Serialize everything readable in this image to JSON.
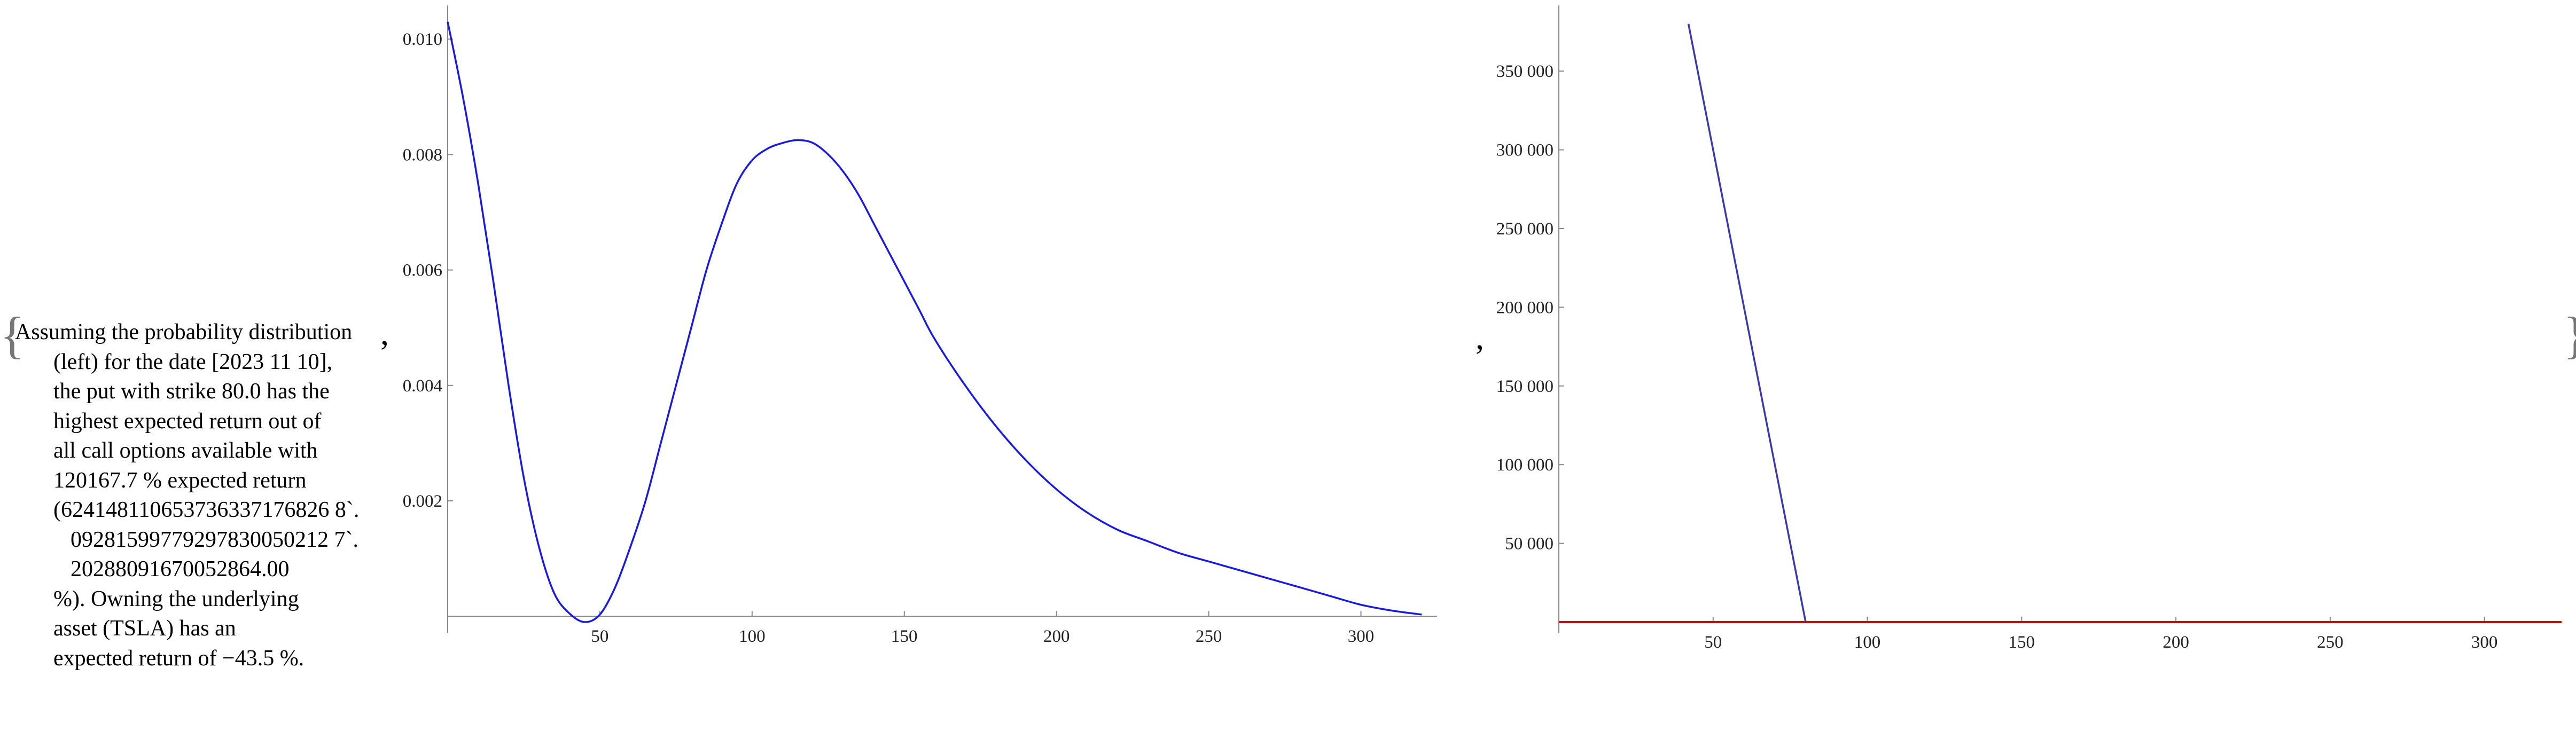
{
  "description": {
    "lines": [
      "Assuming the probability distribution",
      "(left) for the date [2023 11 10],",
      "the put with strike 80.0 has the",
      "highest expected return out of",
      "all call options available with",
      "120167.7 % expected return",
      "(624148110653736337176826 8`.",
      "09281599779297830050212 7`.",
      "20288091670052864.00",
      "%). Owning the underlying",
      "asset (TSLA) has an",
      "expected return of −43.5 %."
    ]
  },
  "punctuation": {
    "open": "{",
    "close": "}",
    "comma": ","
  },
  "colors": {
    "left_curve": "#1a1adc",
    "right_line": "#3a3aa8",
    "right_baseline": "#c01010",
    "axis": "#888888"
  },
  "chart_data": [
    {
      "type": "line",
      "title": "",
      "xlabel": "",
      "ylabel": "",
      "xlim": [
        0,
        325
      ],
      "ylim": [
        -0.0001,
        0.0104
      ],
      "x_ticks": [
        50,
        100,
        150,
        200,
        250,
        300
      ],
      "x_tick_labels": [
        "50",
        "100",
        "150",
        "200",
        "250",
        "300"
      ],
      "y_ticks": [
        0.002,
        0.004,
        0.006,
        0.008,
        0.01
      ],
      "y_tick_labels": [
        "0.002",
        "0.004",
        "0.006",
        "0.008",
        "0.010"
      ],
      "grid": false,
      "series": [
        {
          "x": [
            0,
            5,
            10,
            15,
            20,
            25,
            30,
            35,
            40,
            45,
            50,
            55,
            60,
            65,
            70,
            75,
            80,
            85,
            90,
            95,
            100,
            105,
            110,
            115,
            120,
            125,
            130,
            135,
            140,
            145,
            150,
            155,
            160,
            170,
            180,
            190,
            200,
            210,
            220,
            230,
            240,
            250,
            260,
            270,
            280,
            290,
            300,
            310,
            320
          ],
          "y": [
            0.0103,
            0.009,
            0.0075,
            0.0058,
            0.004,
            0.0024,
            0.0012,
            0.0004,
            5e-05,
            -0.0001,
            3e-05,
            0.0005,
            0.0012,
            0.002,
            0.003,
            0.004,
            0.005,
            0.006,
            0.0068,
            0.0075,
            0.0079,
            0.0081,
            0.0082,
            0.00825,
            0.0082,
            0.008,
            0.0077,
            0.0073,
            0.0068,
            0.0063,
            0.0058,
            0.0053,
            0.0048,
            0.004,
            0.0033,
            0.0027,
            0.0022,
            0.0018,
            0.0015,
            0.0013,
            0.0011,
            0.00095,
            0.0008,
            0.00065,
            0.0005,
            0.00035,
            0.0002,
            0.0001,
            3e-05
          ]
        }
      ]
    },
    {
      "type": "line",
      "title": "",
      "xlabel": "",
      "ylabel": "",
      "xlim": [
        0,
        325
      ],
      "ylim": [
        0,
        385000
      ],
      "x_ticks": [
        50,
        100,
        150,
        200,
        250,
        300
      ],
      "x_tick_labels": [
        "50",
        "100",
        "150",
        "200",
        "250",
        "300"
      ],
      "y_ticks": [
        50000,
        100000,
        150000,
        200000,
        250000,
        300000,
        350000
      ],
      "y_tick_labels": [
        "50 000",
        "100 000",
        "150 000",
        "200 000",
        "250 000",
        "300 000",
        "350 000"
      ],
      "grid": false,
      "series": [
        {
          "x": [
            42,
            80,
            325
          ],
          "y": [
            380000,
            0,
            0
          ]
        },
        {
          "x": [
            0,
            325
          ],
          "y": [
            0,
            0
          ]
        }
      ]
    }
  ]
}
